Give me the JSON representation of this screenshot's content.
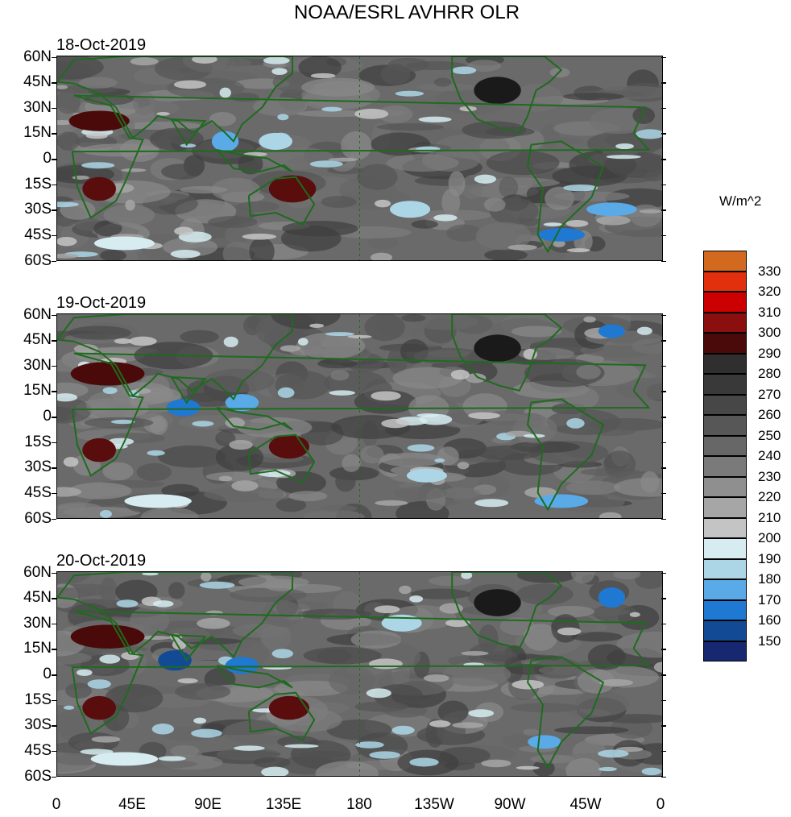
{
  "title": "NOAA/ESRL AVHRR OLR",
  "panels": [
    {
      "date": "18-Oct-2019"
    },
    {
      "date": "19-Oct-2019"
    },
    {
      "date": "20-Oct-2019"
    }
  ],
  "lat_labels": [
    "60N",
    "45N",
    "30N",
    "15N",
    "0",
    "15S",
    "30S",
    "45S",
    "60S"
  ],
  "lon_labels": [
    "0",
    "45E",
    "90E",
    "135E",
    "180",
    "135W",
    "90W",
    "45W",
    "0"
  ],
  "legend": {
    "unit": "W/m^2",
    "labels": [
      "330",
      "320",
      "310",
      "300",
      "290",
      "280",
      "270",
      "260",
      "250",
      "240",
      "230",
      "220",
      "210",
      "200",
      "190",
      "180",
      "170",
      "160",
      "150"
    ],
    "colors": [
      "#d2691e",
      "#e2300f",
      "#cc0000",
      "#8b0f0f",
      "#4b0a0a",
      "#2f2f2f",
      "#393939",
      "#474747",
      "#575757",
      "#676767",
      "#7a7a7a",
      "#8f8f8f",
      "#a6a6a6",
      "#c4c4c4",
      "#d6ecf0",
      "#acd6e6",
      "#5aaae8",
      "#1f78d2",
      "#124a96",
      "#182870"
    ]
  }
}
